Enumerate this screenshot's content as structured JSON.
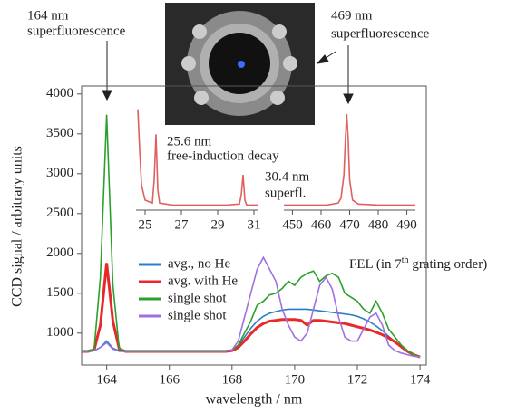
{
  "chart_data": [
    {
      "type": "line",
      "x_label": "wavelength / nm",
      "y_label": "CCD signal / arbitrary units",
      "xlim": [
        163.2,
        174.2
      ],
      "ylim": [
        600,
        4100
      ],
      "xticks": [
        164,
        166,
        168,
        170,
        172,
        174
      ],
      "yticks": [
        1000,
        1500,
        2000,
        2500,
        3000,
        3500,
        4000
      ],
      "x": [
        163.2,
        163.4,
        163.6,
        163.8,
        164.0,
        164.2,
        164.4,
        164.6,
        164.8,
        165.0,
        165.2,
        165.4,
        165.6,
        165.8,
        166.0,
        166.2,
        166.4,
        166.6,
        166.8,
        167.0,
        167.2,
        167.4,
        167.6,
        167.8,
        168.0,
        168.2,
        168.4,
        168.6,
        168.8,
        169.0,
        169.2,
        169.4,
        169.6,
        169.8,
        170.0,
        170.2,
        170.4,
        170.6,
        170.8,
        171.0,
        171.2,
        171.4,
        171.6,
        171.8,
        172.0,
        172.2,
        172.4,
        172.6,
        172.8,
        173.0,
        173.2,
        173.4,
        173.6,
        173.8,
        174.0
      ],
      "series": [
        {
          "name": "avg., no He",
          "color": "#2a7fc4",
          "values": [
            770,
            770,
            780,
            820,
            900,
            810,
            780,
            770,
            770,
            770,
            770,
            770,
            770,
            770,
            770,
            770,
            770,
            770,
            770,
            770,
            770,
            770,
            770,
            770,
            780,
            840,
            950,
            1060,
            1150,
            1210,
            1250,
            1270,
            1290,
            1300,
            1300,
            1300,
            1300,
            1290,
            1280,
            1270,
            1260,
            1250,
            1240,
            1230,
            1210,
            1180,
            1140,
            1090,
            1030,
            960,
            890,
            820,
            770,
            730,
            700
          ]
        },
        {
          "name": "avg. with He",
          "color": "#e8282a",
          "values": [
            770,
            770,
            790,
            1100,
            1880,
            1150,
            800,
            770,
            770,
            770,
            770,
            770,
            770,
            770,
            770,
            770,
            770,
            770,
            770,
            770,
            770,
            770,
            770,
            770,
            780,
            820,
            900,
            990,
            1070,
            1120,
            1150,
            1160,
            1170,
            1170,
            1170,
            1160,
            1100,
            1160,
            1160,
            1150,
            1140,
            1130,
            1120,
            1100,
            1080,
            1060,
            1040,
            1010,
            980,
            940,
            890,
            830,
            770,
            730,
            700
          ]
        },
        {
          "name": "single shot",
          "color": "#2ca02c",
          "values": [
            780,
            780,
            800,
            1700,
            3740,
            1600,
            800,
            780,
            780,
            780,
            780,
            780,
            780,
            780,
            780,
            780,
            780,
            780,
            780,
            780,
            780,
            780,
            780,
            780,
            790,
            850,
            1000,
            1150,
            1350,
            1400,
            1480,
            1500,
            1560,
            1650,
            1600,
            1700,
            1750,
            1780,
            1650,
            1720,
            1750,
            1700,
            1500,
            1450,
            1400,
            1300,
            1250,
            1400,
            1250,
            1050,
            950,
            850,
            780,
            730,
            700
          ]
        },
        {
          "name": "single shot",
          "color": "#a070e0",
          "values": [
            770,
            770,
            780,
            820,
            880,
            800,
            770,
            770,
            770,
            770,
            770,
            770,
            770,
            770,
            770,
            770,
            770,
            770,
            770,
            770,
            770,
            770,
            770,
            770,
            790,
            900,
            1200,
            1500,
            1800,
            1950,
            1800,
            1650,
            1300,
            1100,
            950,
            900,
            1000,
            1300,
            1600,
            1700,
            1550,
            1200,
            950,
            900,
            900,
            1050,
            1200,
            1250,
            1100,
            850,
            780,
            750,
            730,
            710,
            700
          ]
        }
      ],
      "annotations": [
        "164 nm",
        "superfluorescence",
        "469 nm",
        "superfluorescence"
      ],
      "fel_label": [
        "FEL (in 7",
        "th",
        " grating order)"
      ]
    },
    {
      "type": "line",
      "xlim": [
        24.5,
        31.25
      ],
      "ylim": [
        0,
        1.05
      ],
      "xticks": [
        25,
        27,
        29,
        31
      ],
      "x": [
        24.6,
        24.7,
        24.8,
        25.0,
        25.4,
        25.5,
        25.6,
        25.7,
        25.8,
        26.5,
        28,
        29.5,
        30.2,
        30.3,
        30.4,
        30.5,
        30.6,
        31,
        31.2
      ],
      "series": [
        {
          "color": "#e06060",
          "values": [
            1.0,
            0.6,
            0.25,
            0.1,
            0.07,
            0.3,
            0.75,
            0.2,
            0.07,
            0.05,
            0.05,
            0.05,
            0.06,
            0.15,
            0.35,
            0.1,
            0.05,
            0.05,
            0.05
          ]
        }
      ],
      "annotations": [
        "25.6 nm",
        "free-induction decay",
        "30.4 nm",
        "superfl."
      ]
    },
    {
      "type": "line",
      "xlim": [
        447,
        493
      ],
      "ylim": [
        0,
        1.05
      ],
      "xticks": [
        450,
        460,
        470,
        480,
        490
      ],
      "x": [
        447,
        455,
        462,
        466,
        467,
        468,
        468.5,
        469,
        469.5,
        470,
        471,
        473,
        480,
        490,
        493
      ],
      "series": [
        {
          "color": "#e06060",
          "values": [
            0.05,
            0.05,
            0.05,
            0.07,
            0.12,
            0.35,
            0.7,
            0.95,
            0.7,
            0.3,
            0.1,
            0.06,
            0.05,
            0.05,
            0.05
          ]
        }
      ]
    }
  ]
}
